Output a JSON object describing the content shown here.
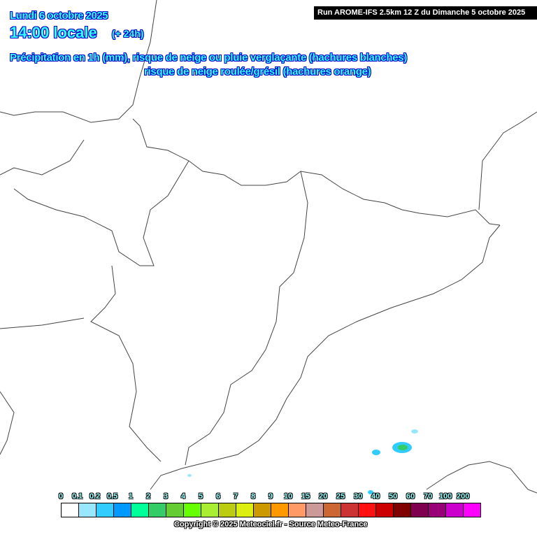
{
  "header": {
    "date": "Lundi 6 octobre 2025",
    "time": "14:00 locale",
    "lead": "(+ 24h)",
    "description_line1": "Précipitation en 1h (mm), risque de neige ou pluie verglaçante (hachures blanches)",
    "description_line2": "risque de neige roulée/grésil (hachures orange)",
    "run": "Run AROME-IFS 2.5km 12 Z du Dimanche 5 octobre 2025"
  },
  "legend": {
    "labels": [
      "0",
      "0.1",
      "0.2",
      "0.5",
      "1",
      "2",
      "3",
      "4",
      "5",
      "6",
      "7",
      "8",
      "9",
      "10",
      "15",
      "20",
      "25",
      "30",
      "40",
      "50",
      "60",
      "70",
      "100",
      "200"
    ],
    "colors": [
      "#ffffff",
      "#99e6ff",
      "#33ccff",
      "#0099ff",
      "#00ff99",
      "#33cc66",
      "#66cc33",
      "#66ff00",
      "#aaee33",
      "#bbcc11",
      "#ddee11",
      "#cc9900",
      "#ff9900",
      "#ff9966",
      "#cc9999",
      "#cc6633",
      "#cc3333",
      "#ff1111",
      "#cc0000",
      "#800000",
      "#800050",
      "#990077",
      "#cc00cc",
      "#ff00ff"
    ]
  },
  "copyright": "Copyright © 2025 Meteociel.fr - Source Meteo-France"
}
